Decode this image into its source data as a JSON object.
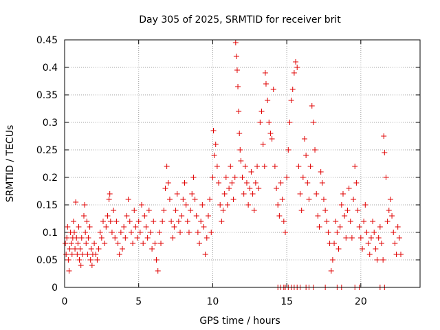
{
  "chart_data": {
    "type": "scatter",
    "title": "Day 305 of 2025, SRMTID for receiver brit",
    "xlabel": "GPS time / hours",
    "ylabel": "SRMTID / TECUs",
    "xlim": [
      0,
      24
    ],
    "ylim": [
      0,
      0.45
    ],
    "xticks": [
      0,
      5,
      10,
      15,
      20
    ],
    "xtick_labels": [
      "0",
      "5",
      "10",
      "15",
      "20"
    ],
    "yticks": [
      0,
      0.05,
      0.1,
      0.15,
      0.2,
      0.25,
      0.3,
      0.35,
      0.4,
      0.45
    ],
    "ytick_labels": [
      "0",
      "0.05",
      "0.1",
      "0.15",
      "0.2",
      "0.25",
      "0.3",
      "0.35",
      "0.4",
      "0.45"
    ],
    "grid": true,
    "marker": "plus",
    "color": "#e00000",
    "series": [
      {
        "name": "SRMTID",
        "points": [
          [
            0.05,
            0.08
          ],
          [
            0.1,
            0.06
          ],
          [
            0.15,
            0.09
          ],
          [
            0.2,
            0.11
          ],
          [
            0.25,
            0.05
          ],
          [
            0.3,
            0.03
          ],
          [
            0.35,
            0.07
          ],
          [
            0.4,
            0.1
          ],
          [
            0.45,
            0.08
          ],
          [
            0.5,
            0.06
          ],
          [
            0.55,
            0.09
          ],
          [
            0.6,
            0.12
          ],
          [
            0.65,
            0.1
          ],
          [
            0.7,
            0.07
          ],
          [
            0.75,
            0.155
          ],
          [
            0.8,
            0.09
          ],
          [
            0.85,
            0.06
          ],
          [
            0.9,
            0.08
          ],
          [
            0.95,
            0.11
          ],
          [
            1.0,
            0.05
          ],
          [
            1.05,
            0.07
          ],
          [
            1.1,
            0.04
          ],
          [
            1.15,
            0.09
          ],
          [
            1.2,
            0.06
          ],
          [
            1.3,
            0.13
          ],
          [
            1.35,
            0.15
          ],
          [
            1.4,
            0.1
          ],
          [
            1.45,
            0.08
          ],
          [
            1.5,
            0.12
          ],
          [
            1.55,
            0.06
          ],
          [
            1.6,
            0.09
          ],
          [
            1.7,
            0.11
          ],
          [
            1.75,
            0.05
          ],
          [
            1.8,
            0.07
          ],
          [
            1.85,
            0.04
          ],
          [
            1.9,
            0.06
          ],
          [
            2.0,
            0.08
          ],
          [
            2.1,
            0.06
          ],
          [
            2.2,
            0.05
          ],
          [
            2.3,
            0.07
          ],
          [
            2.4,
            0.1
          ],
          [
            2.5,
            0.09
          ],
          [
            2.6,
            0.12
          ],
          [
            2.7,
            0.08
          ],
          [
            2.8,
            0.11
          ],
          [
            2.9,
            0.13
          ],
          [
            3.0,
            0.16
          ],
          [
            3.05,
            0.17
          ],
          [
            3.1,
            0.12
          ],
          [
            3.2,
            0.1
          ],
          [
            3.3,
            0.14
          ],
          [
            3.4,
            0.09
          ],
          [
            3.5,
            0.12
          ],
          [
            3.6,
            0.08
          ],
          [
            3.7,
            0.06
          ],
          [
            3.8,
            0.1
          ],
          [
            3.9,
            0.07
          ],
          [
            4.0,
            0.11
          ],
          [
            4.1,
            0.09
          ],
          [
            4.2,
            0.13
          ],
          [
            4.3,
            0.16
          ],
          [
            4.4,
            0.12
          ],
          [
            4.5,
            0.1
          ],
          [
            4.6,
            0.08
          ],
          [
            4.7,
            0.14
          ],
          [
            4.8,
            0.11
          ],
          [
            4.9,
            0.09
          ],
          [
            5.0,
            0.12
          ],
          [
            5.1,
            0.1
          ],
          [
            5.2,
            0.15
          ],
          [
            5.3,
            0.08
          ],
          [
            5.4,
            0.13
          ],
          [
            5.5,
            0.11
          ],
          [
            5.6,
            0.09
          ],
          [
            5.7,
            0.14
          ],
          [
            5.8,
            0.1
          ],
          [
            5.9,
            0.07
          ],
          [
            6.0,
            0.12
          ],
          [
            6.1,
            0.08
          ],
          [
            6.2,
            0.05
          ],
          [
            6.3,
            0.03
          ],
          [
            6.4,
            0.1
          ],
          [
            6.5,
            0.08
          ],
          [
            6.6,
            0.12
          ],
          [
            6.7,
            0.14
          ],
          [
            6.8,
            0.18
          ],
          [
            6.9,
            0.22
          ],
          [
            7.0,
            0.19
          ],
          [
            7.1,
            0.16
          ],
          [
            7.2,
            0.12
          ],
          [
            7.3,
            0.09
          ],
          [
            7.4,
            0.11
          ],
          [
            7.5,
            0.14
          ],
          [
            7.6,
            0.17
          ],
          [
            7.7,
            0.12
          ],
          [
            7.8,
            0.1
          ],
          [
            7.9,
            0.13
          ],
          [
            8.0,
            0.16
          ],
          [
            8.1,
            0.19
          ],
          [
            8.2,
            0.15
          ],
          [
            8.3,
            0.12
          ],
          [
            8.4,
            0.1
          ],
          [
            8.5,
            0.14
          ],
          [
            8.6,
            0.17
          ],
          [
            8.7,
            0.2
          ],
          [
            8.8,
            0.16
          ],
          [
            8.9,
            0.13
          ],
          [
            9.0,
            0.1
          ],
          [
            9.1,
            0.08
          ],
          [
            9.2,
            0.12
          ],
          [
            9.3,
            0.15
          ],
          [
            9.4,
            0.11
          ],
          [
            9.5,
            0.06
          ],
          [
            9.6,
            0.09
          ],
          [
            9.7,
            0.13
          ],
          [
            9.8,
            0.16
          ],
          [
            9.9,
            0.1
          ],
          [
            10.0,
            0.2
          ],
          [
            10.05,
            0.285
          ],
          [
            10.1,
            0.24
          ],
          [
            10.2,
            0.26
          ],
          [
            10.3,
            0.22
          ],
          [
            10.4,
            0.19
          ],
          [
            10.5,
            0.15
          ],
          [
            10.6,
            0.12
          ],
          [
            10.7,
            0.14
          ],
          [
            10.8,
            0.17
          ],
          [
            10.9,
            0.2
          ],
          [
            11.0,
            0.15
          ],
          [
            11.1,
            0.18
          ],
          [
            11.2,
            0.22
          ],
          [
            11.3,
            0.19
          ],
          [
            11.4,
            0.16
          ],
          [
            11.5,
            0.2
          ],
          [
            11.55,
            0.445
          ],
          [
            11.6,
            0.42
          ],
          [
            11.65,
            0.395
          ],
          [
            11.7,
            0.365
          ],
          [
            11.75,
            0.32
          ],
          [
            11.8,
            0.28
          ],
          [
            11.85,
            0.25
          ],
          [
            11.9,
            0.23
          ],
          [
            12.0,
            0.2
          ],
          [
            12.1,
            0.17
          ],
          [
            12.2,
            0.22
          ],
          [
            12.3,
            0.19
          ],
          [
            12.4,
            0.15
          ],
          [
            12.5,
            0.18
          ],
          [
            12.6,
            0.21
          ],
          [
            12.7,
            0.17
          ],
          [
            12.8,
            0.14
          ],
          [
            12.9,
            0.19
          ],
          [
            13.0,
            0.22
          ],
          [
            13.1,
            0.18
          ],
          [
            13.2,
            0.3
          ],
          [
            13.3,
            0.32
          ],
          [
            13.4,
            0.26
          ],
          [
            13.5,
            0.22
          ],
          [
            13.55,
            0.39
          ],
          [
            13.6,
            0.37
          ],
          [
            13.7,
            0.34
          ],
          [
            13.8,
            0.3
          ],
          [
            13.9,
            0.28
          ],
          [
            14.0,
            0.27
          ],
          [
            14.1,
            0.36
          ],
          [
            14.2,
            0.22
          ],
          [
            14.3,
            0.18
          ],
          [
            14.4,
            0.15
          ],
          [
            14.5,
            0.13
          ],
          [
            14.6,
            0.19
          ],
          [
            14.7,
            0.16
          ],
          [
            14.8,
            0.12
          ],
          [
            14.9,
            0.1
          ],
          [
            15.0,
            0.2
          ],
          [
            15.1,
            0.25
          ],
          [
            15.2,
            0.3
          ],
          [
            15.3,
            0.34
          ],
          [
            15.4,
            0.36
          ],
          [
            15.5,
            0.39
          ],
          [
            15.6,
            0.41
          ],
          [
            15.7,
            0.4
          ],
          [
            15.8,
            0.22
          ],
          [
            15.9,
            0.17
          ],
          [
            16.0,
            0.14
          ],
          [
            16.1,
            0.2
          ],
          [
            16.2,
            0.27
          ],
          [
            16.3,
            0.24
          ],
          [
            16.4,
            0.19
          ],
          [
            16.5,
            0.16
          ],
          [
            16.6,
            0.22
          ],
          [
            16.7,
            0.33
          ],
          [
            16.8,
            0.3
          ],
          [
            16.9,
            0.25
          ],
          [
            17.0,
            0.17
          ],
          [
            17.1,
            0.13
          ],
          [
            17.2,
            0.11
          ],
          [
            17.3,
            0.21
          ],
          [
            17.4,
            0.19
          ],
          [
            17.5,
            0.16
          ],
          [
            17.6,
            0.14
          ],
          [
            17.7,
            0.12
          ],
          [
            17.8,
            0.1
          ],
          [
            17.9,
            0.08
          ],
          [
            18.0,
            0.03
          ],
          [
            18.1,
            0.05
          ],
          [
            18.2,
            0.08
          ],
          [
            18.3,
            0.12
          ],
          [
            18.4,
            0.1
          ],
          [
            18.5,
            0.07
          ],
          [
            18.6,
            0.11
          ],
          [
            18.7,
            0.15
          ],
          [
            18.8,
            0.17
          ],
          [
            18.9,
            0.13
          ],
          [
            19.0,
            0.09
          ],
          [
            19.1,
            0.14
          ],
          [
            19.2,
            0.18
          ],
          [
            19.3,
            0.12
          ],
          [
            19.4,
            0.09
          ],
          [
            19.5,
            0.16
          ],
          [
            19.6,
            0.22
          ],
          [
            19.7,
            0.19
          ],
          [
            19.8,
            0.14
          ],
          [
            19.9,
            0.11
          ],
          [
            20.0,
            0.09
          ],
          [
            20.1,
            0.07
          ],
          [
            20.2,
            0.12
          ],
          [
            20.3,
            0.15
          ],
          [
            20.4,
            0.1
          ],
          [
            20.5,
            0.08
          ],
          [
            20.6,
            0.06
          ],
          [
            20.7,
            0.09
          ],
          [
            20.8,
            0.12
          ],
          [
            20.9,
            0.1
          ],
          [
            21.0,
            0.07
          ],
          [
            21.1,
            0.05
          ],
          [
            21.2,
            0.09
          ],
          [
            21.3,
            0.11
          ],
          [
            21.4,
            0.08
          ],
          [
            21.5,
            0.05
          ],
          [
            21.55,
            0.275
          ],
          [
            21.6,
            0.245
          ],
          [
            21.7,
            0.2
          ],
          [
            21.8,
            0.12
          ],
          [
            21.9,
            0.14
          ],
          [
            22.0,
            0.16
          ],
          [
            22.1,
            0.13
          ],
          [
            22.2,
            0.1
          ],
          [
            22.3,
            0.08
          ],
          [
            22.4,
            0.06
          ],
          [
            22.5,
            0.11
          ],
          [
            22.6,
            0.09
          ],
          [
            22.7,
            0.06
          ],
          [
            14.4,
            0
          ],
          [
            14.6,
            0
          ],
          [
            14.8,
            0
          ],
          [
            14.9,
            0
          ],
          [
            15.1,
            0
          ],
          [
            15.3,
            0
          ],
          [
            15.5,
            0
          ],
          [
            15.7,
            0
          ],
          [
            15.9,
            0
          ],
          [
            16.3,
            0
          ],
          [
            16.5,
            0
          ],
          [
            16.8,
            0
          ],
          [
            17.6,
            0
          ],
          [
            18.4,
            0
          ],
          [
            18.7,
            0
          ],
          [
            19.6,
            0
          ],
          [
            19.9,
            0
          ],
          [
            21.3,
            0
          ],
          [
            21.6,
            0
          ]
        ]
      }
    ]
  }
}
